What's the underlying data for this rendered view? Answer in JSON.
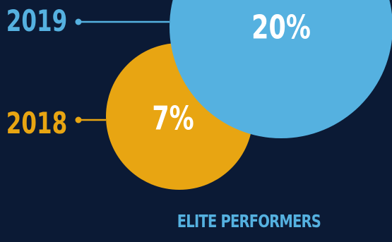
{
  "chart_data": {
    "type": "bubble",
    "title": "",
    "caption": "ELITE PERFORMERS",
    "series": [
      {
        "label": "2019",
        "value": 20,
        "value_label": "20%",
        "color": "#55b1e0"
      },
      {
        "label": "2018",
        "value": 7,
        "value_label": "7%",
        "color": "#e8a512"
      }
    ]
  },
  "colors": {
    "background": "#0b1a35",
    "value_text": "#ffffff",
    "caption_text": "#55b1e0"
  }
}
